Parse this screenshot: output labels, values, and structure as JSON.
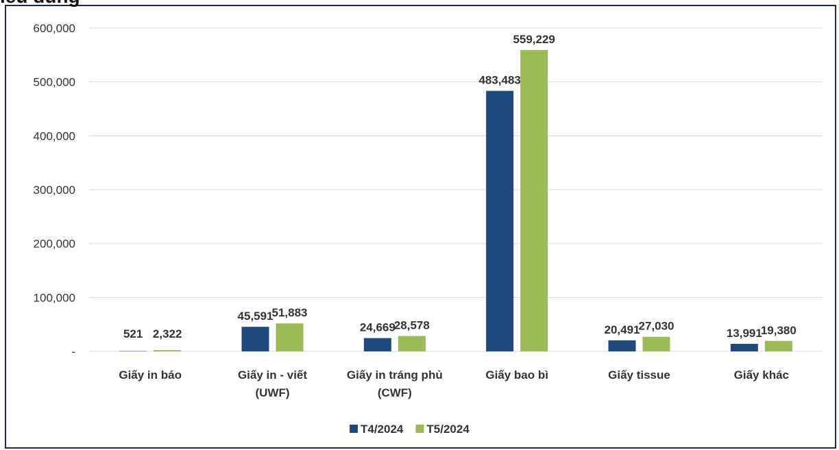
{
  "chart_data": {
    "type": "bar",
    "title": "iêu dùng",
    "categories": [
      "Giấy in báo",
      "Giấy in - viết (UWF)",
      "Giấy in tráng phủ (CWF)",
      "Giấy bao bì",
      "Giấy tissue",
      "Giấy khác"
    ],
    "series": [
      {
        "name": "T4/2024",
        "color": "#1f497d",
        "values": [
          521,
          45591,
          24669,
          483483,
          20491,
          13991
        ],
        "value_labels": [
          "521",
          "45,591",
          "24,669",
          "483,483",
          "20,491",
          "13,991"
        ]
      },
      {
        "name": "T5/2024",
        "color": "#9bbb59",
        "values": [
          2322,
          51883,
          28578,
          559229,
          27030,
          19380
        ],
        "value_labels": [
          "2,322",
          "51,883",
          "28,578",
          "559,229",
          "27,030",
          "19,380"
        ]
      }
    ],
    "ylim": [
      0,
      600000
    ],
    "yticks": [
      {
        "value": 0,
        "label": "-"
      },
      {
        "value": 100000,
        "label": "100,000"
      },
      {
        "value": 200000,
        "label": "200,000"
      },
      {
        "value": 300000,
        "label": "300,000"
      },
      {
        "value": 400000,
        "label": "400,000"
      },
      {
        "value": 500000,
        "label": "500,000"
      },
      {
        "value": 600000,
        "label": "600,000"
      }
    ],
    "grid": true,
    "legend": "bottom"
  }
}
